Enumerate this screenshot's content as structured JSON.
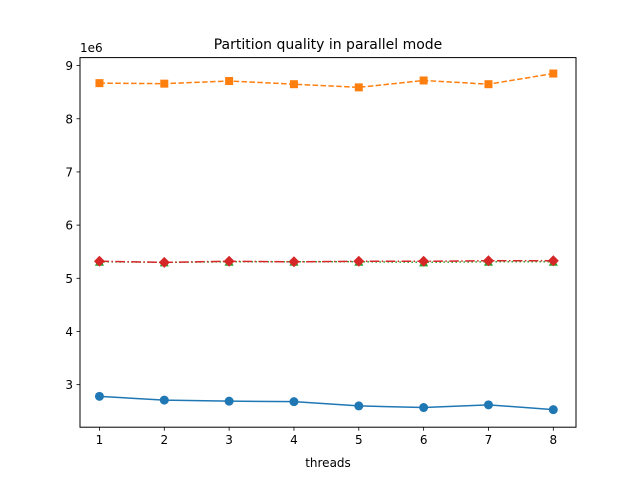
{
  "chart_data": {
    "type": "line",
    "title": "Partition quality in parallel mode",
    "xlabel": "threads",
    "ylabel": "",
    "y_offset_label": "1e6",
    "y_scale_factor": 1000000,
    "xlim": [
      0.7,
      8.35
    ],
    "ylim": [
      2.2,
      9.15
    ],
    "x_ticks": [
      1,
      2,
      3,
      4,
      5,
      6,
      7,
      8
    ],
    "y_ticks": [
      3,
      4,
      5,
      6,
      7,
      8,
      9
    ],
    "grid": false,
    "legend": "none",
    "x": [
      1,
      2,
      3,
      4,
      5,
      6,
      7,
      8
    ],
    "series": [
      {
        "color": "#1f77b4",
        "line_style": "solid",
        "marker": "circle",
        "values": [
          2.78,
          2.71,
          2.69,
          2.68,
          2.6,
          2.57,
          2.62,
          2.53
        ]
      },
      {
        "color": "#ff7f0e",
        "line_style": "dashed",
        "marker": "square",
        "values": [
          8.67,
          8.66,
          8.71,
          8.65,
          8.59,
          8.72,
          8.65,
          8.85
        ]
      },
      {
        "color": "#2ca02c",
        "line_style": "dotted",
        "marker": "triangle-up",
        "values": [
          5.31,
          5.3,
          5.31,
          5.31,
          5.31,
          5.3,
          5.31,
          5.31
        ]
      },
      {
        "color": "#d62728",
        "line_style": "dashdot",
        "marker": "diamond",
        "values": [
          5.32,
          5.3,
          5.32,
          5.31,
          5.32,
          5.32,
          5.33,
          5.33
        ]
      }
    ]
  }
}
